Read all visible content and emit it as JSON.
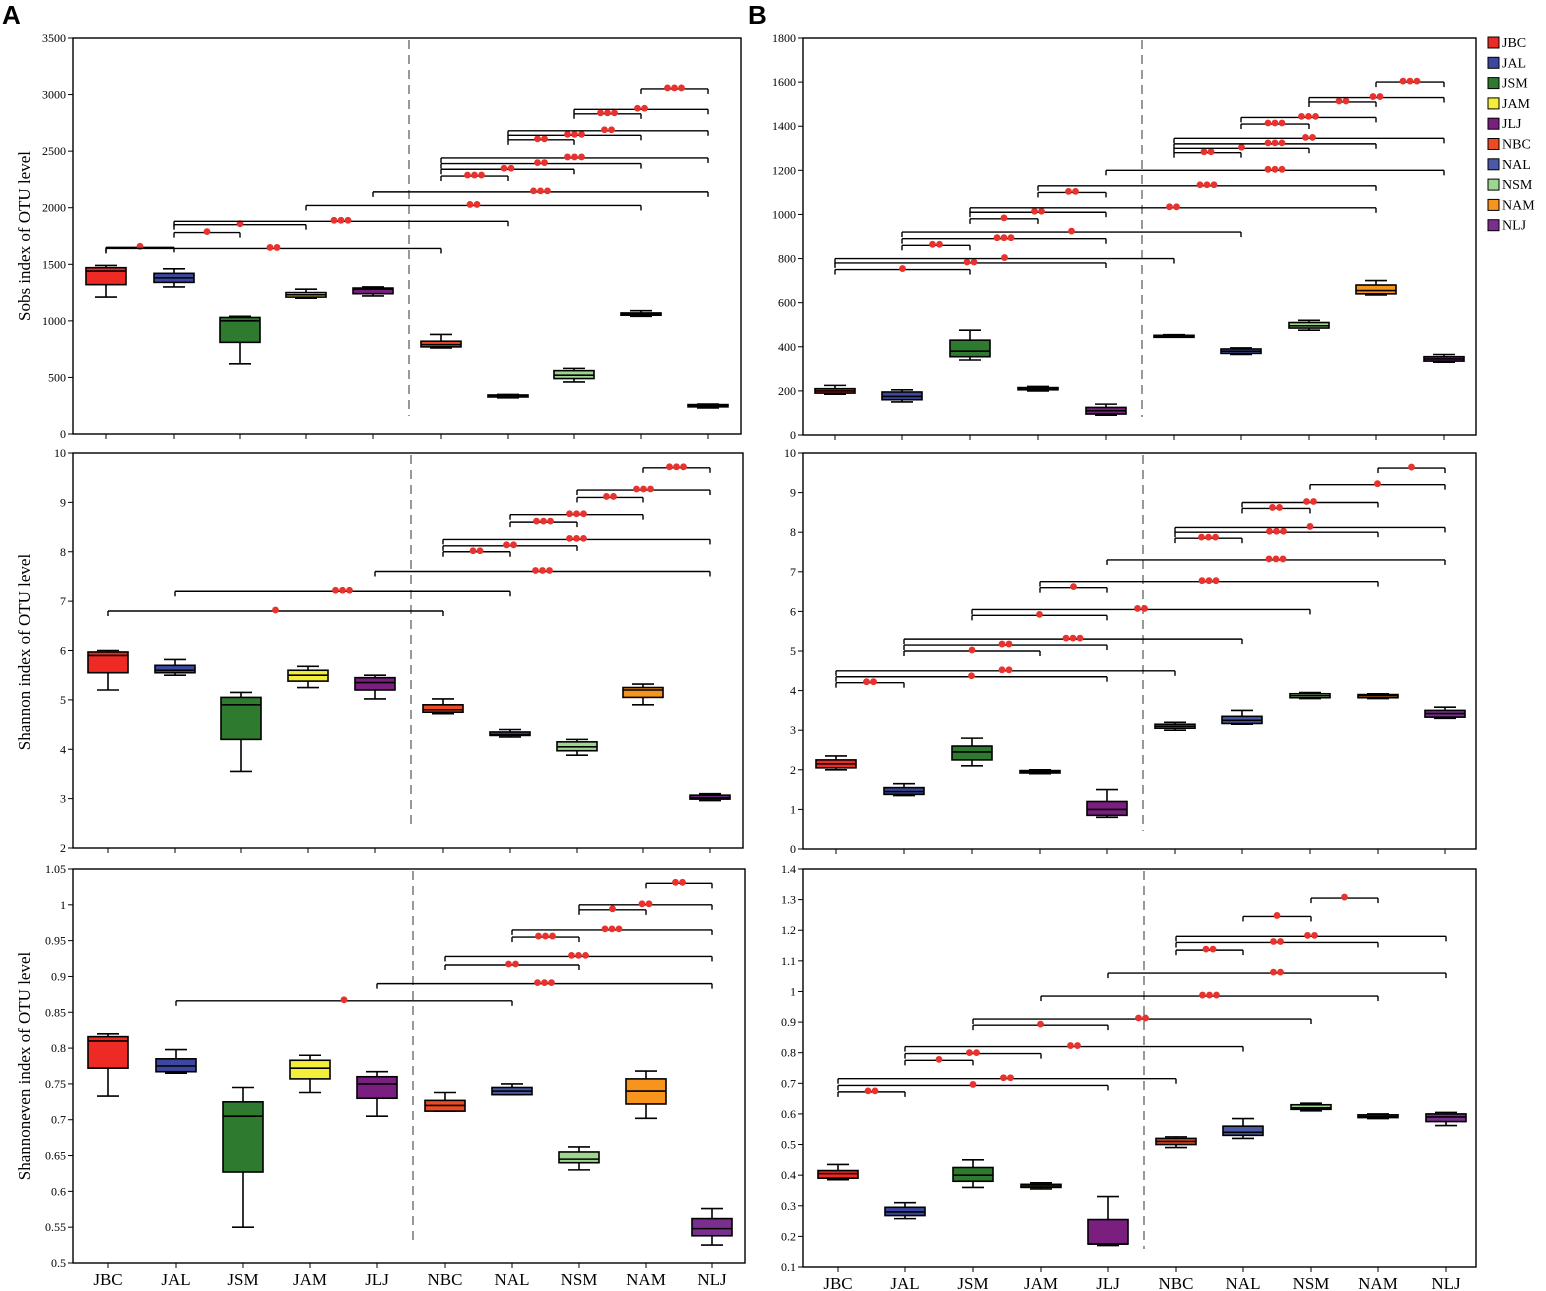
{
  "panel_labels": [
    "A",
    "B"
  ],
  "colors": {
    "JBC": "#ee2a24",
    "JAL": "#3c48a0",
    "JSM": "#2e7a2e",
    "JAM": "#f2ee3a",
    "JLJ": "#7a1f80",
    "NBC": "#ee4a24",
    "NAL": "#4a5aa8",
    "NSM": "#9ed68e",
    "NAM": "#f7941d",
    "NLJ": "#7a2f8f",
    "sig": "#e8322d"
  },
  "legend": [
    "JBC",
    "JAL",
    "JSM",
    "JAM",
    "JLJ",
    "NBC",
    "NAL",
    "NSM",
    "NAM",
    "NLJ"
  ],
  "chart_data": [
    {
      "id": "A1",
      "type": "box",
      "ylabel": "Sobs index of OTU level",
      "ylim": [
        0,
        3500
      ],
      "yticks": [
        "0",
        "500",
        "1000",
        "1500",
        "2000",
        "2500",
        "3000",
        "3500"
      ],
      "categories": [
        "JBC",
        "JAL",
        "JSM",
        "JAM",
        "JLJ",
        "NBC",
        "NAL",
        "NSM",
        "NAM",
        "NLJ"
      ],
      "boxes": [
        [
          1210,
          1320,
          1440,
          1470,
          1490
        ],
        [
          1300,
          1340,
          1380,
          1420,
          1460
        ],
        [
          620,
          810,
          1000,
          1030,
          1040
        ],
        [
          1200,
          1210,
          1230,
          1250,
          1280
        ],
        [
          1220,
          1240,
          1280,
          1290,
          1300
        ],
        [
          760,
          770,
          790,
          820,
          880
        ],
        [
          320,
          330,
          340,
          345,
          350
        ],
        [
          460,
          490,
          520,
          560,
          580
        ],
        [
          1040,
          1050,
          1060,
          1070,
          1090
        ],
        [
          230,
          240,
          250,
          260,
          265
        ]
      ],
      "sig": [
        {
          "from": 1,
          "to": 2,
          "level": 1650,
          "stars": "*"
        },
        {
          "from": 1,
          "to": 6,
          "level": 1640,
          "stars": "**"
        },
        {
          "from": 2,
          "to": 3,
          "level": 1780,
          "stars": "*"
        },
        {
          "from": 2,
          "to": 4,
          "level": 1850,
          "stars": "*"
        },
        {
          "from": 2,
          "to": 7,
          "level": 1880,
          "stars": "***"
        },
        {
          "from": 4,
          "to": 9,
          "level": 2020,
          "stars": "**"
        },
        {
          "from": 5,
          "to": 10,
          "level": 2140,
          "stars": "***"
        },
        {
          "from": 6,
          "to": 7,
          "level": 2280,
          "stars": "***"
        },
        {
          "from": 6,
          "to": 8,
          "level": 2340,
          "stars": "**"
        },
        {
          "from": 6,
          "to": 9,
          "level": 2390,
          "stars": "**"
        },
        {
          "from": 6,
          "to": 10,
          "level": 2440,
          "stars": "***"
        },
        {
          "from": 7,
          "to": 8,
          "level": 2600,
          "stars": "**"
        },
        {
          "from": 7,
          "to": 9,
          "level": 2640,
          "stars": "***"
        },
        {
          "from": 7,
          "to": 10,
          "level": 2680,
          "stars": "**"
        },
        {
          "from": 8,
          "to": 9,
          "level": 2830,
          "stars": "***"
        },
        {
          "from": 8,
          "to": 10,
          "level": 2870,
          "stars": "**"
        },
        {
          "from": 9,
          "to": 10,
          "level": 3050,
          "stars": "***"
        }
      ]
    },
    {
      "id": "B1",
      "type": "box",
      "ylabel": "",
      "ylim": [
        0,
        1800
      ],
      "yticks": [
        "0",
        "200",
        "400",
        "600",
        "800",
        "1000",
        "1200",
        "1400",
        "1600",
        "1800"
      ],
      "categories": [
        "JBC",
        "JAL",
        "JSM",
        "JAM",
        "JLJ",
        "NBC",
        "NAL",
        "NSM",
        "NAM",
        "NLJ"
      ],
      "boxes": [
        [
          185,
          190,
          200,
          210,
          225
        ],
        [
          150,
          160,
          175,
          195,
          205
        ],
        [
          340,
          355,
          380,
          430,
          475
        ],
        [
          200,
          205,
          210,
          215,
          220
        ],
        [
          90,
          95,
          110,
          125,
          140
        ],
        [
          445,
          447,
          450,
          452,
          455
        ],
        [
          365,
          370,
          380,
          390,
          395
        ],
        [
          475,
          485,
          495,
          510,
          520
        ],
        [
          635,
          640,
          655,
          680,
          700
        ],
        [
          330,
          335,
          345,
          355,
          365
        ]
      ],
      "sig": [
        {
          "from": 1,
          "to": 3,
          "level": 750,
          "stars": "*"
        },
        {
          "from": 1,
          "to": 5,
          "level": 780,
          "stars": "**"
        },
        {
          "from": 1,
          "to": 6,
          "level": 800,
          "stars": "*"
        },
        {
          "from": 2,
          "to": 3,
          "level": 860,
          "stars": "**"
        },
        {
          "from": 2,
          "to": 5,
          "level": 890,
          "stars": "***"
        },
        {
          "from": 2,
          "to": 7,
          "level": 920,
          "stars": "*"
        },
        {
          "from": 3,
          "to": 4,
          "level": 980,
          "stars": "*"
        },
        {
          "from": 3,
          "to": 5,
          "level": 1010,
          "stars": "**"
        },
        {
          "from": 3,
          "to": 9,
          "level": 1030,
          "stars": "**"
        },
        {
          "from": 4,
          "to": 5,
          "level": 1100,
          "stars": "**"
        },
        {
          "from": 4,
          "to": 9,
          "level": 1130,
          "stars": "***"
        },
        {
          "from": 5,
          "to": 10,
          "level": 1200,
          "stars": "***"
        },
        {
          "from": 6,
          "to": 7,
          "level": 1280,
          "stars": "**"
        },
        {
          "from": 6,
          "to": 8,
          "level": 1300,
          "stars": "*"
        },
        {
          "from": 6,
          "to": 9,
          "level": 1320,
          "stars": "***"
        },
        {
          "from": 6,
          "to": 10,
          "level": 1345,
          "stars": "**"
        },
        {
          "from": 7,
          "to": 8,
          "level": 1410,
          "stars": "***"
        },
        {
          "from": 7,
          "to": 9,
          "level": 1440,
          "stars": "***"
        },
        {
          "from": 8,
          "to": 9,
          "level": 1510,
          "stars": "**"
        },
        {
          "from": 8,
          "to": 10,
          "level": 1530,
          "stars": "**"
        },
        {
          "from": 9,
          "to": 10,
          "level": 1600,
          "stars": "***"
        }
      ]
    },
    {
      "id": "A2",
      "type": "box",
      "ylabel": "Shannon index of OTU level",
      "ylim": [
        2,
        10
      ],
      "yticks": [
        "2",
        "3",
        "4",
        "5",
        "6",
        "7",
        "8",
        "9",
        "10"
      ],
      "categories": [
        "JBC",
        "JAL",
        "JSM",
        "JAM",
        "JLJ",
        "NBC",
        "NAL",
        "NSM",
        "NAM",
        "NLJ"
      ],
      "boxes": [
        [
          5.2,
          5.55,
          5.9,
          5.97,
          6.0
        ],
        [
          5.5,
          5.55,
          5.6,
          5.7,
          5.82
        ],
        [
          3.55,
          4.2,
          4.9,
          5.05,
          5.15
        ],
        [
          5.25,
          5.38,
          5.5,
          5.6,
          5.68
        ],
        [
          5.02,
          5.2,
          5.35,
          5.45,
          5.5
        ],
        [
          4.72,
          4.75,
          4.8,
          4.9,
          5.02
        ],
        [
          4.25,
          4.28,
          4.3,
          4.35,
          4.4
        ],
        [
          3.88,
          3.97,
          4.05,
          4.15,
          4.2
        ],
        [
          4.9,
          5.05,
          5.2,
          5.25,
          5.32
        ],
        [
          2.96,
          2.99,
          3.02,
          3.07,
          3.1
        ]
      ],
      "sig": [
        {
          "from": 1,
          "to": 6,
          "level": 6.8,
          "stars": "*"
        },
        {
          "from": 2,
          "to": 7,
          "level": 7.2,
          "stars": "***"
        },
        {
          "from": 5,
          "to": 10,
          "level": 7.6,
          "stars": "***"
        },
        {
          "from": 6,
          "to": 7,
          "level": 8.0,
          "stars": "**"
        },
        {
          "from": 6,
          "to": 8,
          "level": 8.12,
          "stars": "**"
        },
        {
          "from": 6,
          "to": 10,
          "level": 8.25,
          "stars": "***"
        },
        {
          "from": 7,
          "to": 8,
          "level": 8.6,
          "stars": "***"
        },
        {
          "from": 7,
          "to": 9,
          "level": 8.75,
          "stars": "***"
        },
        {
          "from": 8,
          "to": 9,
          "level": 9.1,
          "stars": "**"
        },
        {
          "from": 8,
          "to": 10,
          "level": 9.25,
          "stars": "***"
        },
        {
          "from": 9,
          "to": 10,
          "level": 9.7,
          "stars": "***"
        }
      ]
    },
    {
      "id": "B2",
      "type": "box",
      "ylabel": "",
      "ylim": [
        0,
        10
      ],
      "yticks": [
        "0",
        "1",
        "2",
        "3",
        "4",
        "5",
        "6",
        "7",
        "8",
        "9",
        "10"
      ],
      "categories": [
        "JBC",
        "JAL",
        "JSM",
        "JAM",
        "JLJ",
        "NBC",
        "NAL",
        "NSM",
        "NAM",
        "NLJ"
      ],
      "boxes": [
        [
          2.0,
          2.05,
          2.15,
          2.25,
          2.35
        ],
        [
          1.35,
          1.38,
          1.45,
          1.55,
          1.65
        ],
        [
          2.1,
          2.25,
          2.45,
          2.6,
          2.8
        ],
        [
          1.9,
          1.92,
          1.95,
          1.98,
          2.0
        ],
        [
          0.8,
          0.85,
          1.0,
          1.2,
          1.5
        ],
        [
          3.0,
          3.05,
          3.1,
          3.15,
          3.2
        ],
        [
          3.15,
          3.17,
          3.25,
          3.35,
          3.5
        ],
        [
          3.8,
          3.82,
          3.87,
          3.92,
          3.95
        ],
        [
          3.8,
          3.82,
          3.87,
          3.9,
          3.92
        ],
        [
          3.3,
          3.33,
          3.42,
          3.5,
          3.58
        ]
      ],
      "sig": [
        {
          "from": 1,
          "to": 2,
          "level": 4.2,
          "stars": "**"
        },
        {
          "from": 1,
          "to": 5,
          "level": 4.35,
          "stars": "*"
        },
        {
          "from": 1,
          "to": 6,
          "level": 4.5,
          "stars": "**"
        },
        {
          "from": 2,
          "to": 4,
          "level": 5.0,
          "stars": "*"
        },
        {
          "from": 2,
          "to": 5,
          "level": 5.15,
          "stars": "**"
        },
        {
          "from": 2,
          "to": 7,
          "level": 5.3,
          "stars": "***"
        },
        {
          "from": 3,
          "to": 5,
          "level": 5.9,
          "stars": "*"
        },
        {
          "from": 3,
          "to": 8,
          "level": 6.05,
          "stars": "**"
        },
        {
          "from": 4,
          "to": 5,
          "level": 6.6,
          "stars": "*"
        },
        {
          "from": 4,
          "to": 9,
          "level": 6.75,
          "stars": "***"
        },
        {
          "from": 5,
          "to": 10,
          "level": 7.3,
          "stars": "***"
        },
        {
          "from": 6,
          "to": 7,
          "level": 7.85,
          "stars": "***"
        },
        {
          "from": 6,
          "to": 9,
          "level": 8.0,
          "stars": "***"
        },
        {
          "from": 6,
          "to": 10,
          "level": 8.12,
          "stars": "*"
        },
        {
          "from": 7,
          "to": 8,
          "level": 8.6,
          "stars": "**"
        },
        {
          "from": 7,
          "to": 9,
          "level": 8.75,
          "stars": "**"
        },
        {
          "from": 8,
          "to": 10,
          "level": 9.2,
          "stars": "*"
        },
        {
          "from": 9,
          "to": 10,
          "level": 9.62,
          "stars": "*"
        }
      ]
    },
    {
      "id": "A3",
      "type": "box",
      "ylabel": "Shannoneven index of OTU level",
      "ylim": [
        0.5,
        1.05
      ],
      "yticks": [
        "0.5",
        "0.55",
        "0.6",
        "0.65",
        "0.7",
        "0.75",
        "0.8",
        "0.85",
        "0.9",
        "0.95",
        "1",
        "1.05"
      ],
      "categories": [
        "JBC",
        "JAL",
        "JSM",
        "JAM",
        "JLJ",
        "NBC",
        "NAL",
        "NSM",
        "NAM",
        "NLJ"
      ],
      "boxes": [
        [
          0.733,
          0.772,
          0.81,
          0.816,
          0.82
        ],
        [
          0.765,
          0.767,
          0.775,
          0.785,
          0.798
        ],
        [
          0.55,
          0.627,
          0.705,
          0.725,
          0.745
        ],
        [
          0.738,
          0.757,
          0.772,
          0.783,
          0.79
        ],
        [
          0.705,
          0.73,
          0.75,
          0.76,
          0.767
        ],
        [
          0.712,
          0.712,
          0.72,
          0.727,
          0.738
        ],
        [
          0.735,
          0.735,
          0.74,
          0.745,
          0.75
        ],
        [
          0.63,
          0.64,
          0.645,
          0.655,
          0.662
        ],
        [
          0.702,
          0.722,
          0.74,
          0.757,
          0.768
        ],
        [
          0.525,
          0.538,
          0.548,
          0.562,
          0.576
        ]
      ],
      "sig": [
        {
          "from": 2,
          "to": 7,
          "level": 0.866,
          "stars": "*"
        },
        {
          "from": 5,
          "to": 10,
          "level": 0.89,
          "stars": "***"
        },
        {
          "from": 6,
          "to": 8,
          "level": 0.916,
          "stars": "**"
        },
        {
          "from": 6,
          "to": 10,
          "level": 0.928,
          "stars": "***"
        },
        {
          "from": 7,
          "to": 8,
          "level": 0.955,
          "stars": "***"
        },
        {
          "from": 7,
          "to": 10,
          "level": 0.965,
          "stars": "***"
        },
        {
          "from": 8,
          "to": 9,
          "level": 0.993,
          "stars": "*"
        },
        {
          "from": 8,
          "to": 10,
          "level": 1.0,
          "stars": "**"
        },
        {
          "from": 9,
          "to": 10,
          "level": 1.03,
          "stars": "**"
        }
      ]
    },
    {
      "id": "B3",
      "type": "box",
      "ylabel": "",
      "ylim": [
        0.1,
        1.4
      ],
      "yticks": [
        "0.1",
        "0.2",
        "0.3",
        "0.4",
        "0.5",
        "0.6",
        "0.7",
        "0.8",
        "0.9",
        "1",
        "1.1",
        "1.2",
        "1.3",
        "1.4"
      ],
      "categories": [
        "JBC",
        "JAL",
        "JSM",
        "JAM",
        "JLJ",
        "NBC",
        "NAL",
        "NSM",
        "NAM",
        "NLJ"
      ],
      "boxes": [
        [
          0.385,
          0.39,
          0.405,
          0.415,
          0.435
        ],
        [
          0.258,
          0.268,
          0.28,
          0.295,
          0.31
        ],
        [
          0.36,
          0.38,
          0.4,
          0.425,
          0.45
        ],
        [
          0.355,
          0.36,
          0.365,
          0.37,
          0.375
        ],
        [
          0.17,
          0.175,
          0.175,
          0.255,
          0.33
        ],
        [
          0.49,
          0.5,
          0.51,
          0.52,
          0.525
        ],
        [
          0.52,
          0.53,
          0.54,
          0.56,
          0.585
        ],
        [
          0.61,
          0.615,
          0.62,
          0.63,
          0.635
        ],
        [
          0.585,
          0.588,
          0.592,
          0.597,
          0.6
        ],
        [
          0.562,
          0.575,
          0.59,
          0.6,
          0.605
        ]
      ],
      "sig": [
        {
          "from": 1,
          "to": 2,
          "level": 0.672,
          "stars": "**"
        },
        {
          "from": 1,
          "to": 5,
          "level": 0.693,
          "stars": "*"
        },
        {
          "from": 1,
          "to": 6,
          "level": 0.715,
          "stars": "**"
        },
        {
          "from": 2,
          "to": 3,
          "level": 0.775,
          "stars": "*"
        },
        {
          "from": 2,
          "to": 4,
          "level": 0.797,
          "stars": "**"
        },
        {
          "from": 2,
          "to": 7,
          "level": 0.82,
          "stars": "**"
        },
        {
          "from": 3,
          "to": 5,
          "level": 0.89,
          "stars": "*"
        },
        {
          "from": 3,
          "to": 8,
          "level": 0.91,
          "stars": "**"
        },
        {
          "from": 4,
          "to": 9,
          "level": 0.985,
          "stars": "***"
        },
        {
          "from": 5,
          "to": 10,
          "level": 1.06,
          "stars": "**"
        },
        {
          "from": 6,
          "to": 7,
          "level": 1.135,
          "stars": "**"
        },
        {
          "from": 6,
          "to": 9,
          "level": 1.16,
          "stars": "**"
        },
        {
          "from": 6,
          "to": 10,
          "level": 1.18,
          "stars": "**"
        },
        {
          "from": 7,
          "to": 8,
          "level": 1.245,
          "stars": "*"
        },
        {
          "from": 8,
          "to": 9,
          "level": 1.305,
          "stars": "*"
        }
      ]
    }
  ]
}
